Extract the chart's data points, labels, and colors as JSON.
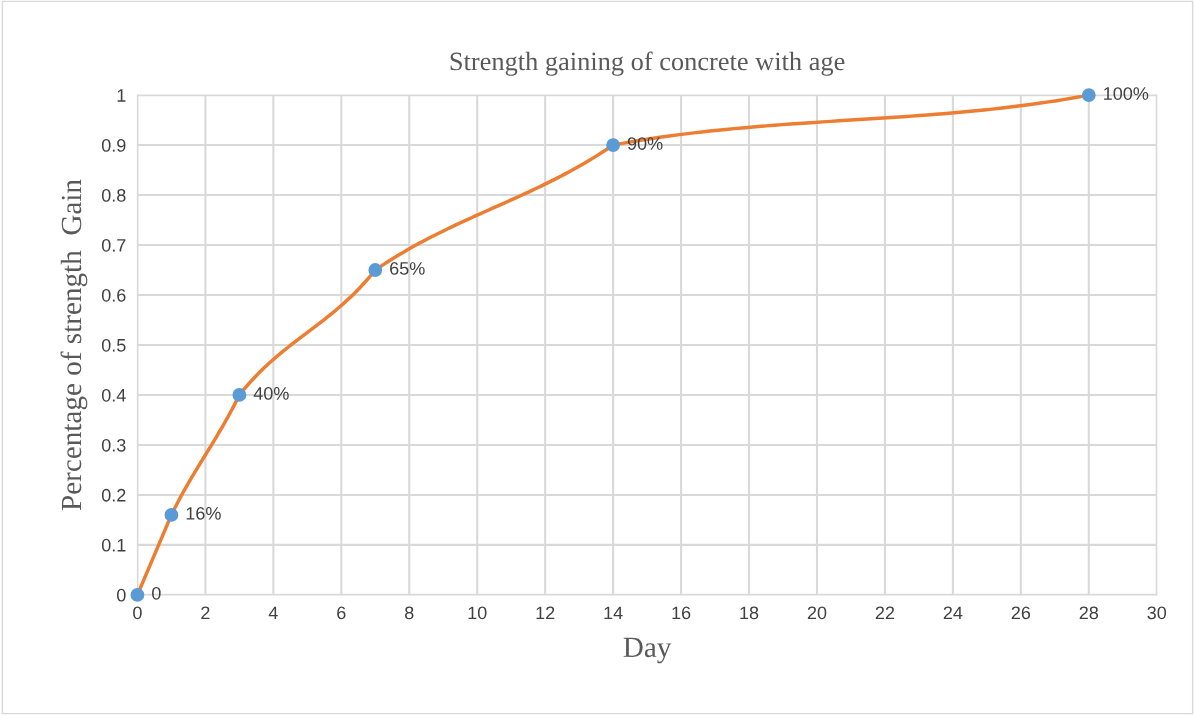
{
  "chart_data": {
    "type": "line",
    "title": "Strength gaining of concrete with age",
    "xlabel": "Day",
    "ylabel": "Percentage of strength  Gain",
    "x": [
      0,
      1,
      3,
      7,
      14,
      28
    ],
    "series": [
      {
        "color": "#ed7d31",
        "marker": "none",
        "values": [
          0,
          0.16,
          0.4,
          0.65,
          0.9,
          1
        ]
      },
      {
        "type": "scatter",
        "marker": "circle",
        "color": "#5b9bd5",
        "values": [
          0,
          0.16,
          0.4,
          0.65,
          0.9,
          1
        ],
        "value_labels": [
          "0",
          "16%",
          "40%",
          "65%",
          "90%",
          "100%"
        ]
      }
    ],
    "xlim": [
      0,
      30
    ],
    "xticks": [
      0,
      2,
      4,
      6,
      8,
      10,
      12,
      14,
      16,
      18,
      20,
      22,
      24,
      26,
      28,
      30
    ],
    "ylim": [
      0,
      1
    ],
    "yticks": [
      0,
      0.1,
      0.2,
      0.3,
      0.4,
      0.5,
      0.6,
      0.7,
      0.8,
      0.9,
      1
    ],
    "grid": true,
    "line_style": "solid"
  }
}
